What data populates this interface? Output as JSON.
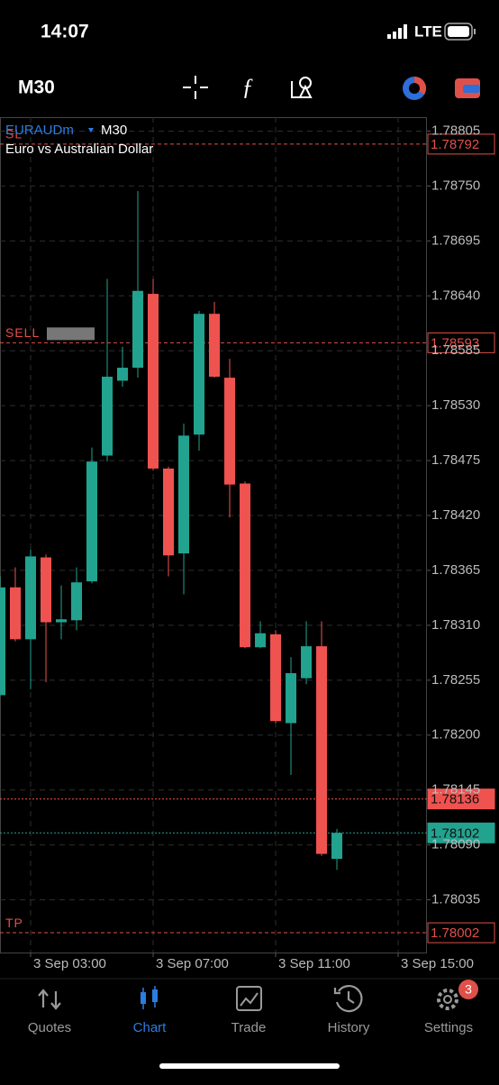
{
  "status_bar": {
    "time": "14:07",
    "network": "LTE"
  },
  "toolbar": {
    "timeframe": "M30"
  },
  "chart_data": {
    "type": "candlestick",
    "symbol": "EURAUDm",
    "timeframe": "M30",
    "description": "Euro vs Australian Dollar",
    "x": [
      2,
      2.5,
      3,
      3.5,
      4,
      4.5,
      5,
      5.5,
      6,
      6.5,
      7,
      7.5,
      8,
      8.5,
      9,
      9.5,
      10,
      10.5,
      11,
      11.5,
      12,
      12.5,
      13
    ],
    "open": [
      1.7824,
      1.78348,
      1.78296,
      1.78378,
      1.78313,
      1.78315,
      1.78354,
      1.7848,
      1.78555,
      1.78568,
      1.78642,
      1.78467,
      1.78382,
      1.78501,
      1.78622,
      1.78558,
      1.78452,
      1.78288,
      1.78301,
      1.78212,
      1.78257,
      1.78289,
      1.78076
    ],
    "high": [
      1.78359,
      1.78368,
      1.78386,
      1.78381,
      1.7835,
      1.78368,
      1.78488,
      1.78657,
      1.78589,
      1.78745,
      1.78657,
      1.78469,
      1.78512,
      1.78625,
      1.78634,
      1.78577,
      1.78454,
      1.78314,
      1.78305,
      1.78278,
      1.78314,
      1.78314,
      1.78106
    ],
    "low": [
      1.7824,
      1.78294,
      1.78246,
      1.78253,
      1.78296,
      1.78305,
      1.78352,
      1.78474,
      1.78549,
      1.78558,
      1.78465,
      1.78359,
      1.78341,
      1.78485,
      1.78558,
      1.78418,
      1.78287,
      1.78287,
      1.78212,
      1.7816,
      1.78251,
      1.78079,
      1.78065
    ],
    "close": [
      1.78348,
      1.78296,
      1.78379,
      1.78313,
      1.78316,
      1.78353,
      1.78474,
      1.78559,
      1.78568,
      1.78645,
      1.78467,
      1.7838,
      1.785,
      1.78622,
      1.78559,
      1.78451,
      1.78288,
      1.78302,
      1.78214,
      1.78262,
      1.78289,
      1.78081,
      1.78102
    ],
    "up_color": "#22a38f",
    "down_color": "#ef5350",
    "xlim": [
      2,
      15.94
    ],
    "ylim": [
      1.77984,
      1.78819
    ],
    "xticks": [
      {
        "value": 3,
        "label": "3 Sep 03:00"
      },
      {
        "value": 7,
        "label": "3 Sep 07:00"
      },
      {
        "value": 11,
        "label": "3 Sep 11:00"
      },
      {
        "value": 15,
        "label": "3 Sep 15:00"
      }
    ],
    "yticks": [
      {
        "value": 1.78805,
        "label": "1.78805"
      },
      {
        "value": 1.7875,
        "label": "1.78750"
      },
      {
        "value": 1.78695,
        "label": "1.78695"
      },
      {
        "value": 1.7864,
        "label": "1.78640"
      },
      {
        "value": 1.78585,
        "label": "1.78585"
      },
      {
        "value": 1.7853,
        "label": "1.78530"
      },
      {
        "value": 1.78475,
        "label": "1.78475"
      },
      {
        "value": 1.7842,
        "label": "1.78420"
      },
      {
        "value": 1.78365,
        "label": "1.78365"
      },
      {
        "value": 1.7831,
        "label": "1.78310"
      },
      {
        "value": 1.78255,
        "label": "1.78255"
      },
      {
        "value": 1.782,
        "label": "1.78200"
      },
      {
        "value": 1.78145,
        "label": "1.78145"
      },
      {
        "value": 1.7809,
        "label": "1.78090"
      },
      {
        "value": 1.78035,
        "label": "1.78035"
      }
    ],
    "grid": true,
    "price_lines": [
      {
        "label": "SL",
        "value": 1.78792,
        "color": "#e0504a",
        "filled": false
      },
      {
        "label": "SELL",
        "value": 1.78593,
        "color": "#e0504a",
        "filled": false
      },
      {
        "value": 1.78136,
        "color": "#ef5350",
        "filled": true
      },
      {
        "value": 1.78102,
        "color": "#22a38f",
        "filled": true
      },
      {
        "label": "TP",
        "value": 1.78002,
        "color": "#e0504a",
        "filled": false
      }
    ]
  },
  "tabs": [
    {
      "label": "Quotes"
    },
    {
      "label": "Chart"
    },
    {
      "label": "Trade"
    },
    {
      "label": "History"
    },
    {
      "label": "Settings"
    }
  ],
  "active_tab": 1,
  "settings_badge": 3
}
